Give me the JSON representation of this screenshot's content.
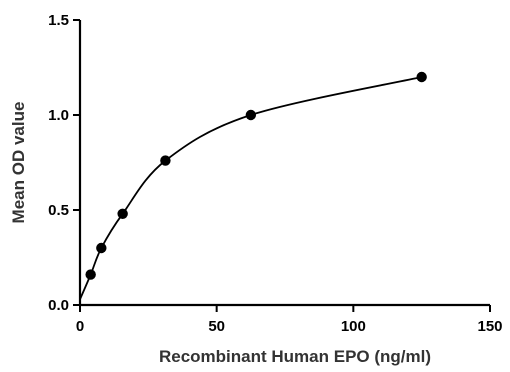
{
  "chart_data": {
    "type": "scatter",
    "xlabel": "Recombinant Human EPO (ng/ml)",
    "ylabel": "Mean OD value",
    "xlim": [
      0,
      150
    ],
    "ylim": [
      0,
      1.5
    ],
    "x_ticks": [
      "0",
      "50",
      "100",
      "150"
    ],
    "y_ticks": [
      "0.0",
      "0.5",
      "1.0",
      "1.5"
    ],
    "grid": false,
    "series": [
      {
        "x": [
          0,
          3.9,
          7.8,
          15.6,
          31.25,
          62.5,
          125
        ],
        "y": [
          0.03,
          0.16,
          0.3,
          0.48,
          0.76,
          1.0,
          1.2
        ]
      }
    ],
    "fit_curve": true
  }
}
